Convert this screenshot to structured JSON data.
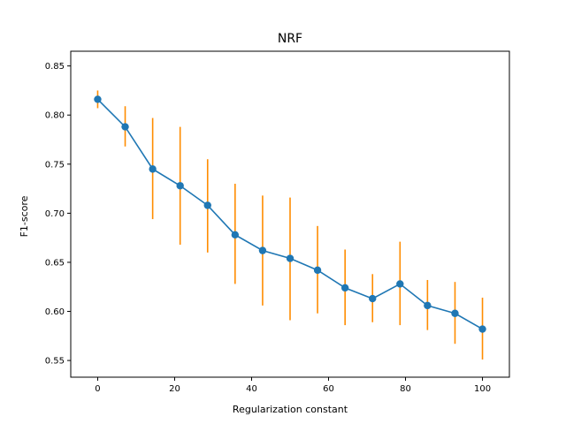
{
  "chart_data": {
    "type": "line",
    "title": "NRF",
    "xlabel": "Regularization constant",
    "ylabel": "F1-score",
    "xlim": [
      -7,
      107
    ],
    "ylim": [
      0.533,
      0.865
    ],
    "xticks": [
      0,
      20,
      40,
      60,
      80,
      100
    ],
    "yticks": [
      0.55,
      0.6,
      0.65,
      0.7,
      0.75,
      0.8,
      0.85
    ],
    "grid": false,
    "legend": "none",
    "series": [
      {
        "color": "#1f77b4",
        "error_color": "#ff8c00",
        "x": [
          0,
          7.14,
          14.29,
          21.43,
          28.57,
          35.71,
          42.86,
          50,
          57.14,
          64.29,
          71.43,
          78.57,
          85.71,
          92.86,
          100
        ],
        "y": [
          0.816,
          0.788,
          0.745,
          0.728,
          0.708,
          0.678,
          0.662,
          0.654,
          0.642,
          0.624,
          0.613,
          0.628,
          0.606,
          0.598,
          0.582
        ],
        "err_low": [
          0.807,
          0.768,
          0.694,
          0.668,
          0.66,
          0.628,
          0.606,
          0.591,
          0.598,
          0.586,
          0.589,
          0.586,
          0.581,
          0.567,
          0.551
        ],
        "err_high": [
          0.825,
          0.809,
          0.797,
          0.788,
          0.755,
          0.73,
          0.718,
          0.716,
          0.687,
          0.663,
          0.638,
          0.671,
          0.632,
          0.63,
          0.614
        ]
      }
    ]
  }
}
